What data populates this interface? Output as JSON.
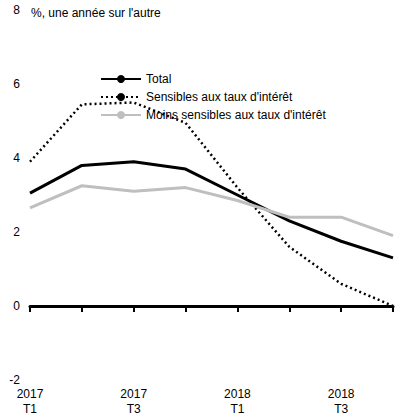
{
  "chart_data": {
    "type": "line",
    "ylabel": "%, une année sur l'autre",
    "categories": [
      "2017\nT1",
      null,
      "2017\nT3",
      null,
      "2018\nT1",
      null,
      "2018\nT3",
      null
    ],
    "series": [
      {
        "name": "Total",
        "color": "#000000",
        "line_style": "solid",
        "values": [
          3.05,
          3.8,
          3.9,
          3.7,
          3.0,
          2.3,
          1.75,
          1.3
        ]
      },
      {
        "name": "Sensibles aux taux d'intérêt",
        "color": "#000000",
        "line_style": "dotted",
        "values": [
          3.9,
          5.45,
          5.5,
          4.95,
          3.2,
          1.6,
          0.6,
          0.0
        ]
      },
      {
        "name": "Moins sensibles aux taux d'intérêt",
        "color": "#bfbfbf",
        "line_style": "solid",
        "values": [
          2.65,
          3.25,
          3.1,
          3.2,
          2.85,
          2.4,
          2.4,
          1.9
        ]
      }
    ],
    "ylim": [
      -2,
      8
    ],
    "yticks": [
      -2,
      0,
      2,
      4,
      6,
      8
    ],
    "grid": false,
    "legend": "top-left"
  }
}
